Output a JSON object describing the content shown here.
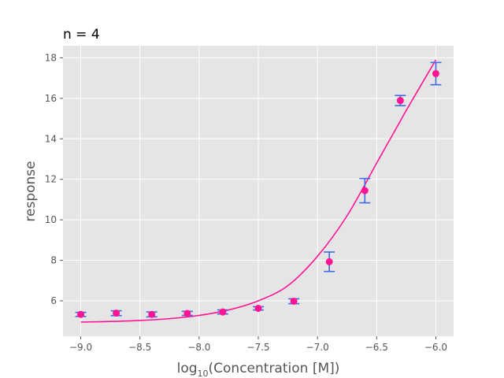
{
  "chart_data": {
    "type": "scatter",
    "title": "n = 4",
    "xlabel": "log",
    "xlabel_sub": "10",
    "xlabel_rest": "(Concentration [M])",
    "ylabel": "response",
    "xlim": [
      -9.15,
      -5.85
    ],
    "ylim": [
      4.25,
      18.6
    ],
    "x_ticks": [
      -9.0,
      -8.5,
      -8.0,
      -7.5,
      -7.0,
      -6.5,
      -6.0
    ],
    "x_tick_labels": [
      "−9.0",
      "−8.5",
      "−8.0",
      "−7.5",
      "−7.0",
      "−6.5",
      "−6.0"
    ],
    "y_ticks": [
      6,
      8,
      10,
      12,
      14,
      16,
      18
    ],
    "y_tick_labels": [
      "6",
      "8",
      "10",
      "12",
      "14",
      "16",
      "18"
    ],
    "grid": true,
    "background": "#e5e5e5",
    "grid_color": "#ffffff",
    "point_color": "#ff1493",
    "errorbar_color": "#4169e1",
    "series": [
      {
        "x": [
          -9.0,
          -8.7,
          -8.4,
          -8.1,
          -7.8,
          -7.5,
          -7.2,
          -6.9,
          -6.6,
          -6.3,
          -6.0
        ],
        "y": [
          5.33,
          5.39,
          5.33,
          5.38,
          5.45,
          5.63,
          5.98,
          7.93,
          11.44,
          15.89,
          17.22
        ],
        "yerr": [
          0.1,
          0.12,
          0.12,
          0.1,
          0.1,
          0.08,
          0.12,
          0.48,
          0.6,
          0.25,
          0.55
        ]
      }
    ],
    "fit_curve": {
      "x": [
        -9.0,
        -8.75,
        -8.5,
        -8.25,
        -8.0,
        -7.75,
        -7.5,
        -7.25,
        -7.0,
        -6.75,
        -6.5,
        -6.25,
        -6.0
      ],
      "y": [
        4.95,
        4.98,
        5.03,
        5.12,
        5.28,
        5.55,
        6.0,
        6.75,
        8.2,
        10.2,
        12.8,
        15.4,
        17.9
      ]
    }
  }
}
